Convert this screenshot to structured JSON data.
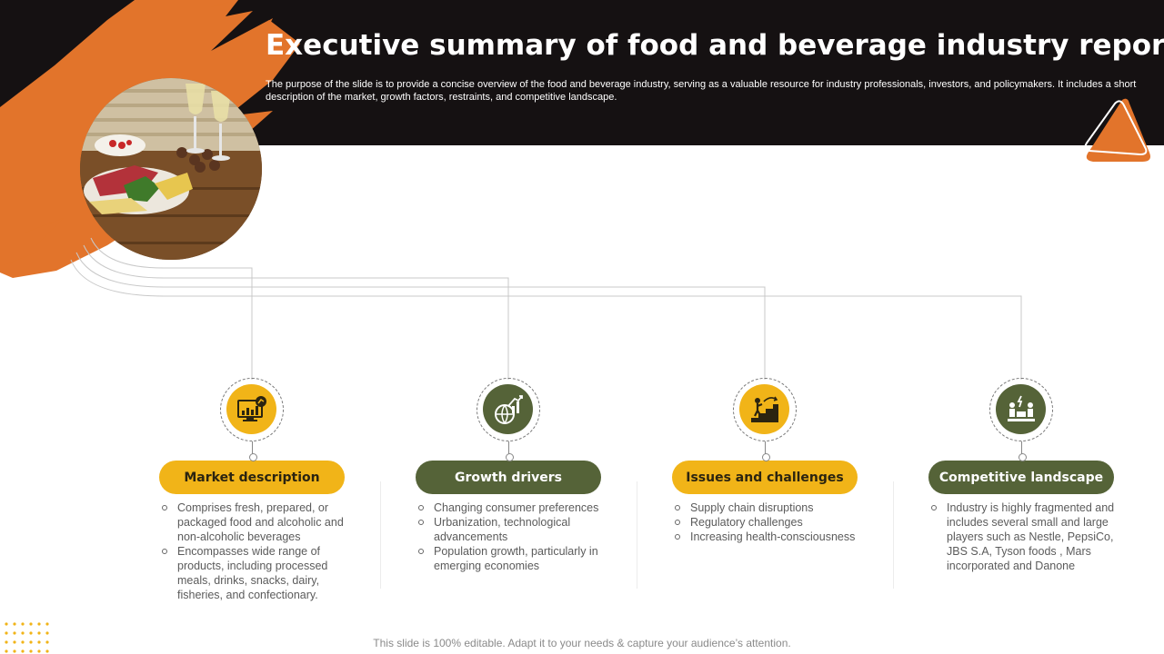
{
  "slide": {
    "title": "Executive summary of food and beverage industry report",
    "subtitle": "The purpose of the slide is to provide a concise overview of the food and beverage industry, serving as a valuable resource for industry professionals, investors, and policymakers. It includes a short description of the market, growth factors, restraints, and competitive landscape.",
    "footer": "This slide is 100% editable. Adapt it to your needs & capture your audience’s attention."
  },
  "colors": {
    "header_bg": "#151112",
    "brush_orange": "#e2742b",
    "accent_yellow": "#f1b418",
    "accent_green": "#556338"
  },
  "columns": [
    {
      "heading": "Market description",
      "icon": "growth-chart-screen-icon",
      "accent": "yellow",
      "bullets": [
        "Comprises fresh, prepared, or packaged food and alcoholic and non-alcoholic beverages",
        "Encompasses wide range of products, including processed meals, drinks, snacks, dairy, fisheries, and confectionary."
      ]
    },
    {
      "heading": "Growth drivers",
      "icon": "globe-growth-icon",
      "accent": "green",
      "bullets": [
        "Changing consumer preferences",
        "Urbanization, technological advancements",
        "Population growth, particularly in emerging economies"
      ]
    },
    {
      "heading": "Issues and challenges",
      "icon": "climbing-stairs-icon",
      "accent": "yellow",
      "bullets": [
        "Supply chain disruptions",
        "Regulatory challenges",
        "Increasing health-consciousness"
      ]
    },
    {
      "heading": "Competitive landscape",
      "icon": "competitors-icon",
      "accent": "green",
      "bullets": [
        "Industry is highly fragmented and includes several small and large players such as Nestle, PepsiCo, JBS S.A, Tyson foods , Mars incorporated and Danone"
      ]
    }
  ]
}
